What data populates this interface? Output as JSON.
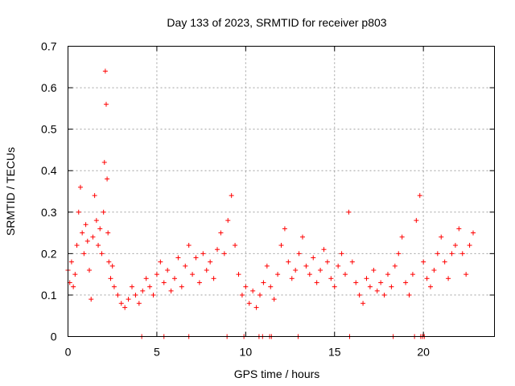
{
  "chart_data": {
    "type": "scatter",
    "title": "Day 133 of 2023, SRMTID for receiver p803",
    "xlabel": "GPS time / hours",
    "ylabel": "SRMTID / TECUs",
    "xlim": [
      0,
      24
    ],
    "ylim": [
      0,
      0.7
    ],
    "x_ticks": [
      0,
      5,
      10,
      15,
      20
    ],
    "x_tick_labels": [
      "0",
      "5",
      "10",
      "15",
      "20"
    ],
    "y_ticks": [
      0,
      0.1,
      0.2,
      0.3,
      0.4,
      0.5,
      0.6,
      0.7
    ],
    "y_tick_labels": [
      "0",
      "0.1",
      "0.2",
      "0.3",
      "0.4",
      "0.5",
      "0.6",
      "0.7"
    ],
    "grid": true,
    "marker": "plus",
    "color": "#ff0000",
    "series": [
      {
        "name": "SRMTID",
        "x": [
          0.0,
          0.1,
          0.2,
          0.3,
          0.4,
          0.5,
          0.6,
          0.7,
          0.8,
          0.9,
          1.0,
          1.1,
          1.2,
          1.3,
          1.4,
          1.5,
          1.6,
          1.7,
          1.8,
          1.9,
          2.0,
          2.05,
          2.1,
          2.15,
          2.2,
          2.25,
          2.3,
          2.4,
          2.5,
          2.6,
          2.8,
          3.0,
          3.2,
          3.4,
          3.6,
          3.8,
          4.0,
          4.2,
          4.4,
          4.6,
          4.8,
          5.0,
          5.2,
          5.4,
          5.6,
          5.8,
          6.0,
          6.2,
          6.4,
          6.6,
          6.8,
          7.0,
          7.2,
          7.4,
          7.6,
          7.8,
          8.0,
          8.2,
          8.4,
          8.6,
          8.8,
          9.0,
          9.2,
          9.4,
          9.6,
          9.8,
          10.0,
          10.2,
          10.4,
          10.6,
          10.8,
          11.0,
          11.2,
          11.4,
          11.6,
          11.8,
          12.0,
          12.2,
          12.4,
          12.6,
          12.8,
          13.0,
          13.2,
          13.4,
          13.6,
          13.8,
          14.0,
          14.2,
          14.4,
          14.6,
          14.8,
          15.0,
          15.2,
          15.4,
          15.6,
          15.8,
          16.0,
          16.2,
          16.4,
          16.6,
          16.8,
          17.0,
          17.2,
          17.4,
          17.6,
          17.8,
          18.0,
          18.2,
          18.4,
          18.6,
          18.8,
          19.0,
          19.2,
          19.4,
          19.6,
          19.8,
          20.0,
          20.2,
          20.4,
          20.6,
          20.8,
          21.0,
          21.2,
          21.4,
          21.6,
          21.8,
          22.0,
          22.2,
          22.4,
          22.6,
          22.8
        ],
        "y": [
          0.16,
          0.13,
          0.18,
          0.12,
          0.15,
          0.22,
          0.3,
          0.36,
          0.25,
          0.2,
          0.27,
          0.23,
          0.16,
          0.09,
          0.24,
          0.34,
          0.28,
          0.22,
          0.26,
          0.2,
          0.3,
          0.42,
          0.64,
          0.56,
          0.38,
          0.25,
          0.18,
          0.14,
          0.17,
          0.12,
          0.1,
          0.08,
          0.07,
          0.09,
          0.12,
          0.1,
          0.08,
          0.11,
          0.14,
          0.12,
          0.1,
          0.15,
          0.18,
          0.13,
          0.16,
          0.11,
          0.14,
          0.19,
          0.12,
          0.17,
          0.22,
          0.15,
          0.19,
          0.13,
          0.2,
          0.16,
          0.18,
          0.14,
          0.21,
          0.25,
          0.2,
          0.28,
          0.34,
          0.22,
          0.15,
          0.1,
          0.12,
          0.08,
          0.11,
          0.07,
          0.1,
          0.13,
          0.17,
          0.12,
          0.09,
          0.15,
          0.22,
          0.26,
          0.18,
          0.14,
          0.16,
          0.2,
          0.24,
          0.17,
          0.15,
          0.19,
          0.13,
          0.16,
          0.21,
          0.18,
          0.14,
          0.12,
          0.17,
          0.2,
          0.15,
          0.3,
          0.18,
          0.13,
          0.1,
          0.08,
          0.14,
          0.12,
          0.16,
          0.11,
          0.13,
          0.1,
          0.15,
          0.12,
          0.17,
          0.2,
          0.24,
          0.13,
          0.1,
          0.15,
          0.28,
          0.34,
          0.18,
          0.14,
          0.12,
          0.16,
          0.2,
          0.24,
          0.18,
          0.14,
          0.2,
          0.22,
          0.26,
          0.2,
          0.15,
          0.22,
          0.25
        ]
      }
    ],
    "gap_markers_x": [
      4.15,
      5.4,
      6.8,
      8.95,
      9.9,
      10.75,
      10.95,
      11.35,
      11.45,
      12.95,
      15.85,
      18.3,
      19.5,
      19.85,
      19.95,
      20.05
    ]
  }
}
